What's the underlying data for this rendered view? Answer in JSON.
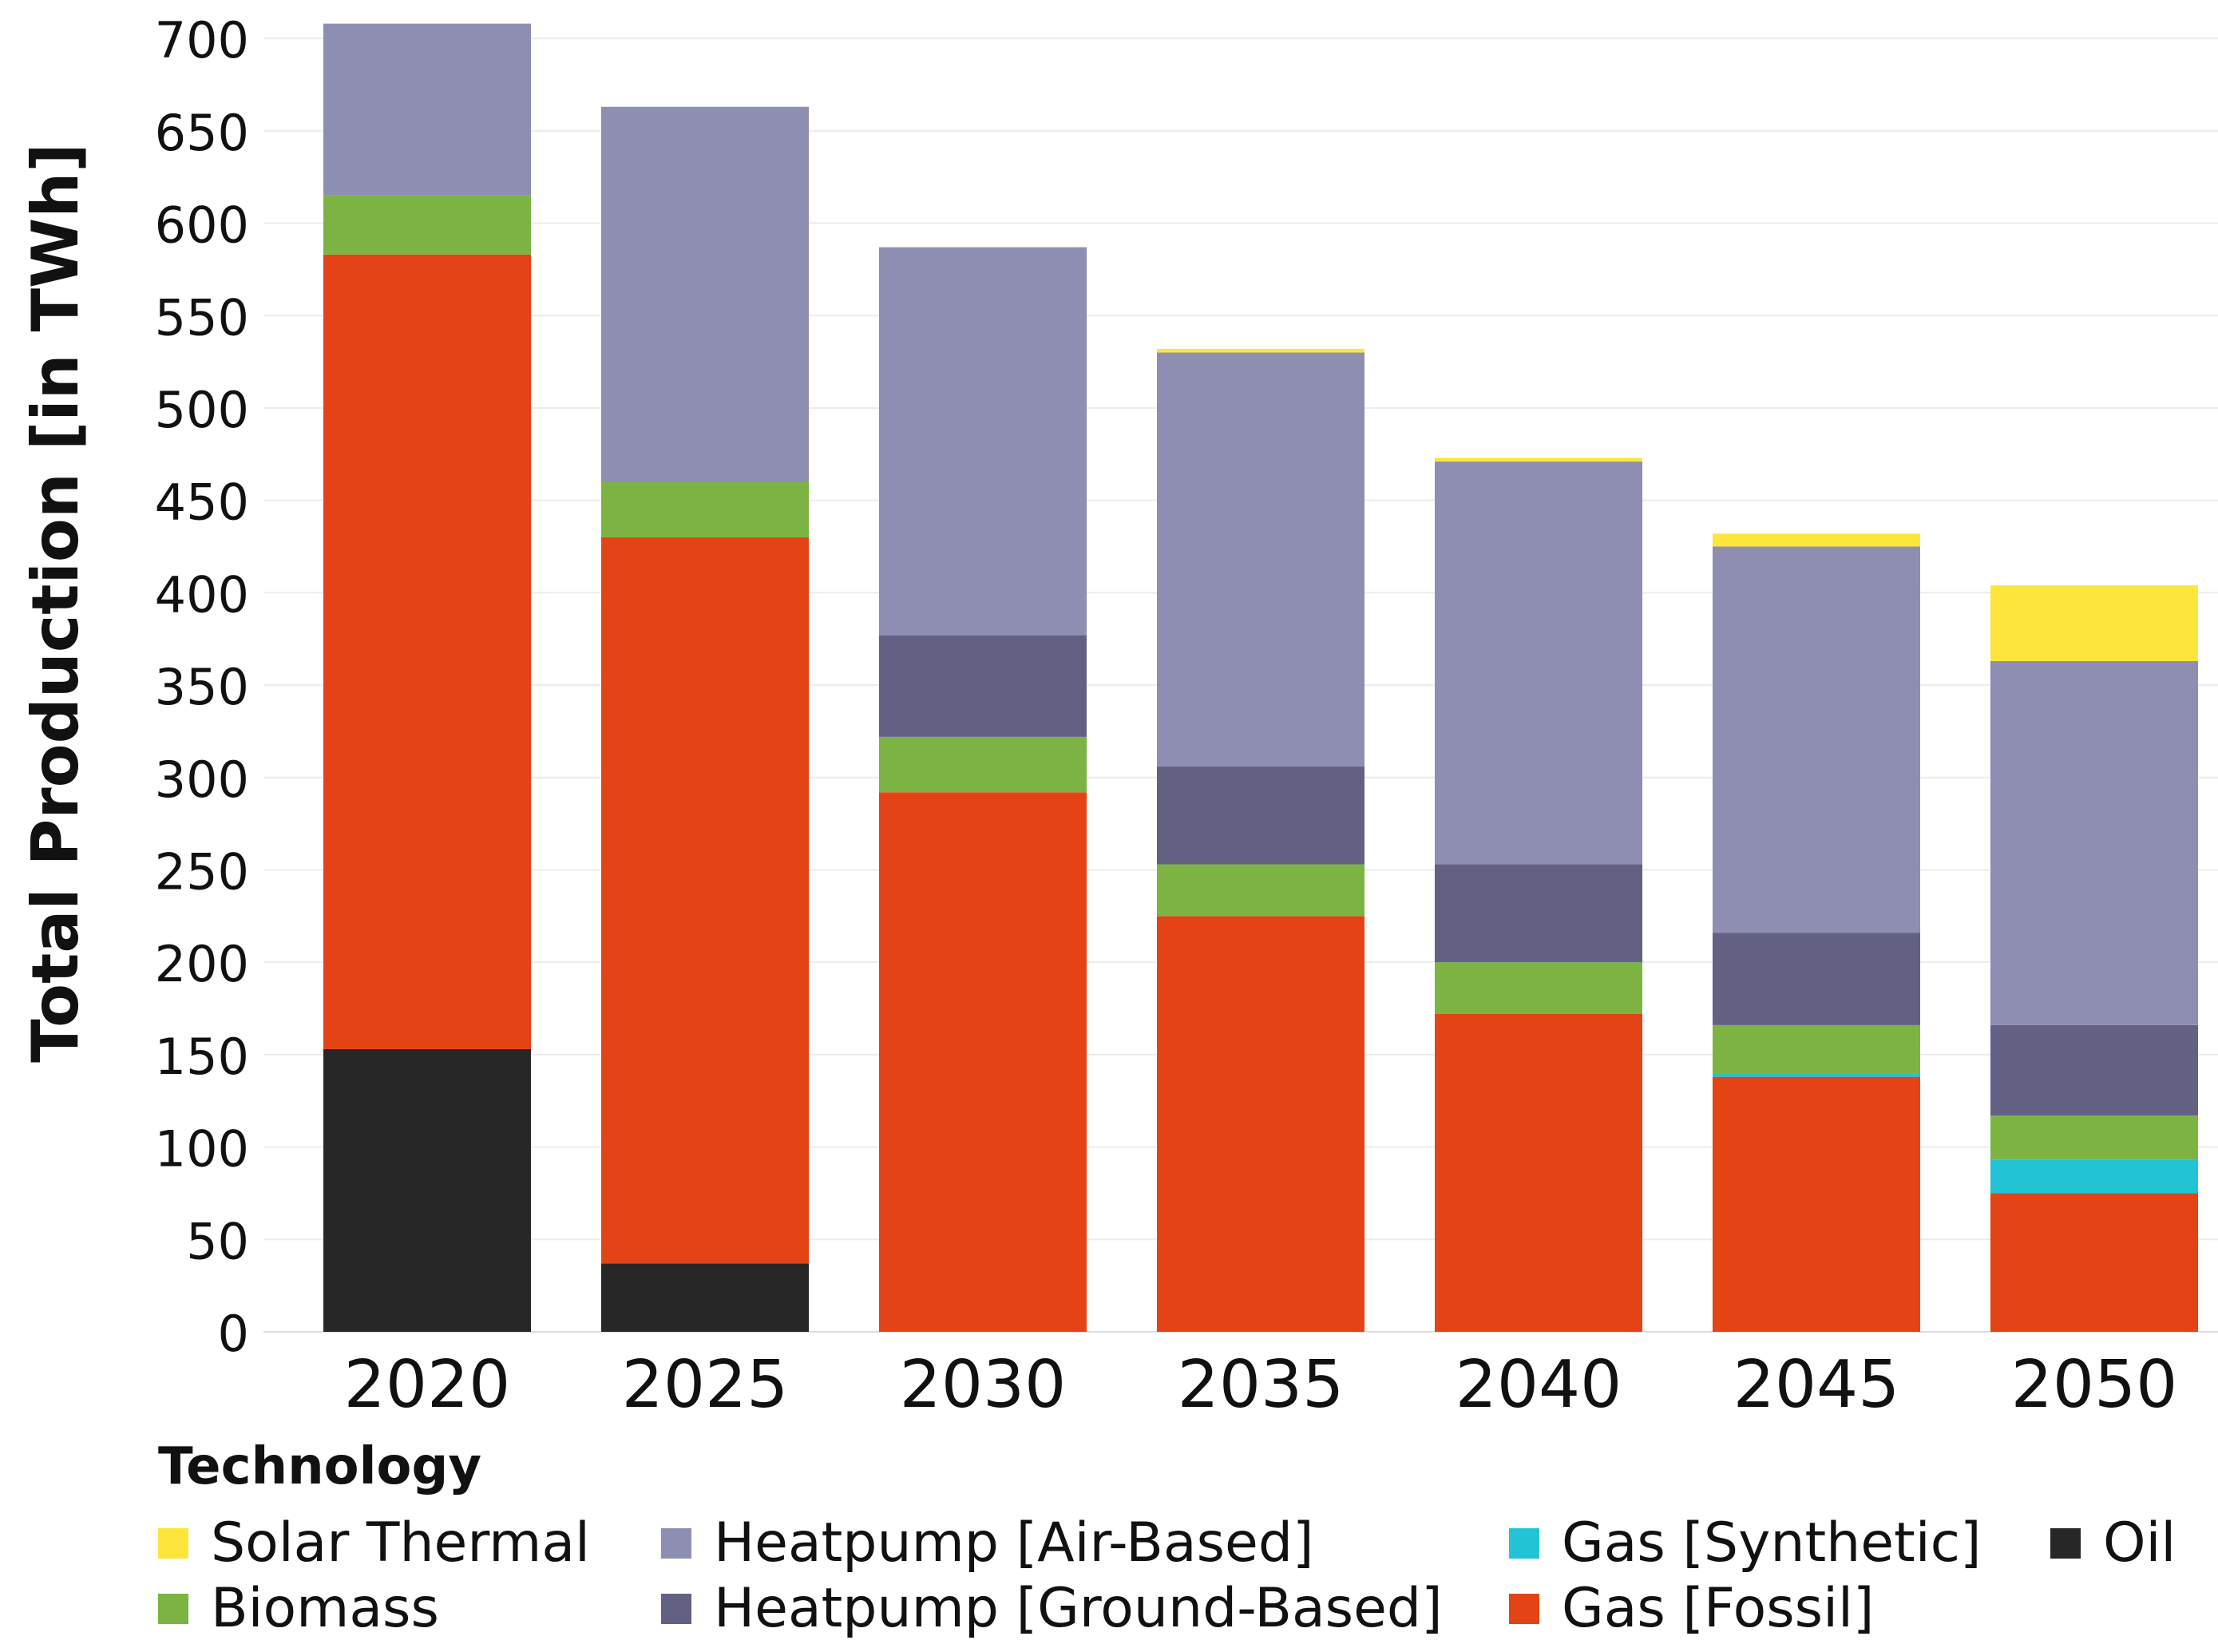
{
  "chart_data": {
    "type": "bar",
    "stacked": true,
    "title": "",
    "xlabel": "",
    "ylabel": "Total Production [in TWh]",
    "ylim": [
      0,
      700
    ],
    "yticks": [
      0,
      50,
      100,
      150,
      200,
      250,
      300,
      350,
      400,
      450,
      500,
      550,
      600,
      650,
      700
    ],
    "categories": [
      "2020",
      "2025",
      "2030",
      "2035",
      "2040",
      "2045",
      "2050"
    ],
    "series": [
      {
        "name": "Oil",
        "color": "#272727",
        "values": [
          153,
          37,
          0,
          0,
          0,
          0,
          0
        ]
      },
      {
        "name": "Gas [Fossil]",
        "color": "#e34315",
        "values": [
          430,
          393,
          292,
          225,
          172,
          138,
          75
        ]
      },
      {
        "name": "Gas [Synthetic]",
        "color": "#23c3d6",
        "values": [
          0,
          0,
          0,
          0,
          0,
          2,
          18
        ]
      },
      {
        "name": "Biomass",
        "color": "#7db343",
        "values": [
          32,
          30,
          30,
          28,
          28,
          26,
          24
        ]
      },
      {
        "name": "Heatpump [Ground-Based]",
        "color": "#626083",
        "values": [
          0,
          0,
          55,
          53,
          53,
          50,
          49
        ]
      },
      {
        "name": "Heatpump [Air-Based]",
        "color": "#8e8eb3",
        "values": [
          93,
          203,
          210,
          224,
          218,
          209,
          197
        ]
      },
      {
        "name": "Solar Thermal",
        "color": "#fde63c",
        "values": [
          0,
          0,
          0,
          2,
          2,
          7,
          41
        ]
      }
    ],
    "legend": {
      "title": "Technology",
      "position": "bottom",
      "entries": [
        "Solar Thermal",
        "Heatpump [Air-Based]",
        "Gas [Synthetic]",
        "Oil",
        "Biomass",
        "Heatpump [Ground-Based]",
        "Gas [Fossil]"
      ]
    },
    "grid": true
  }
}
